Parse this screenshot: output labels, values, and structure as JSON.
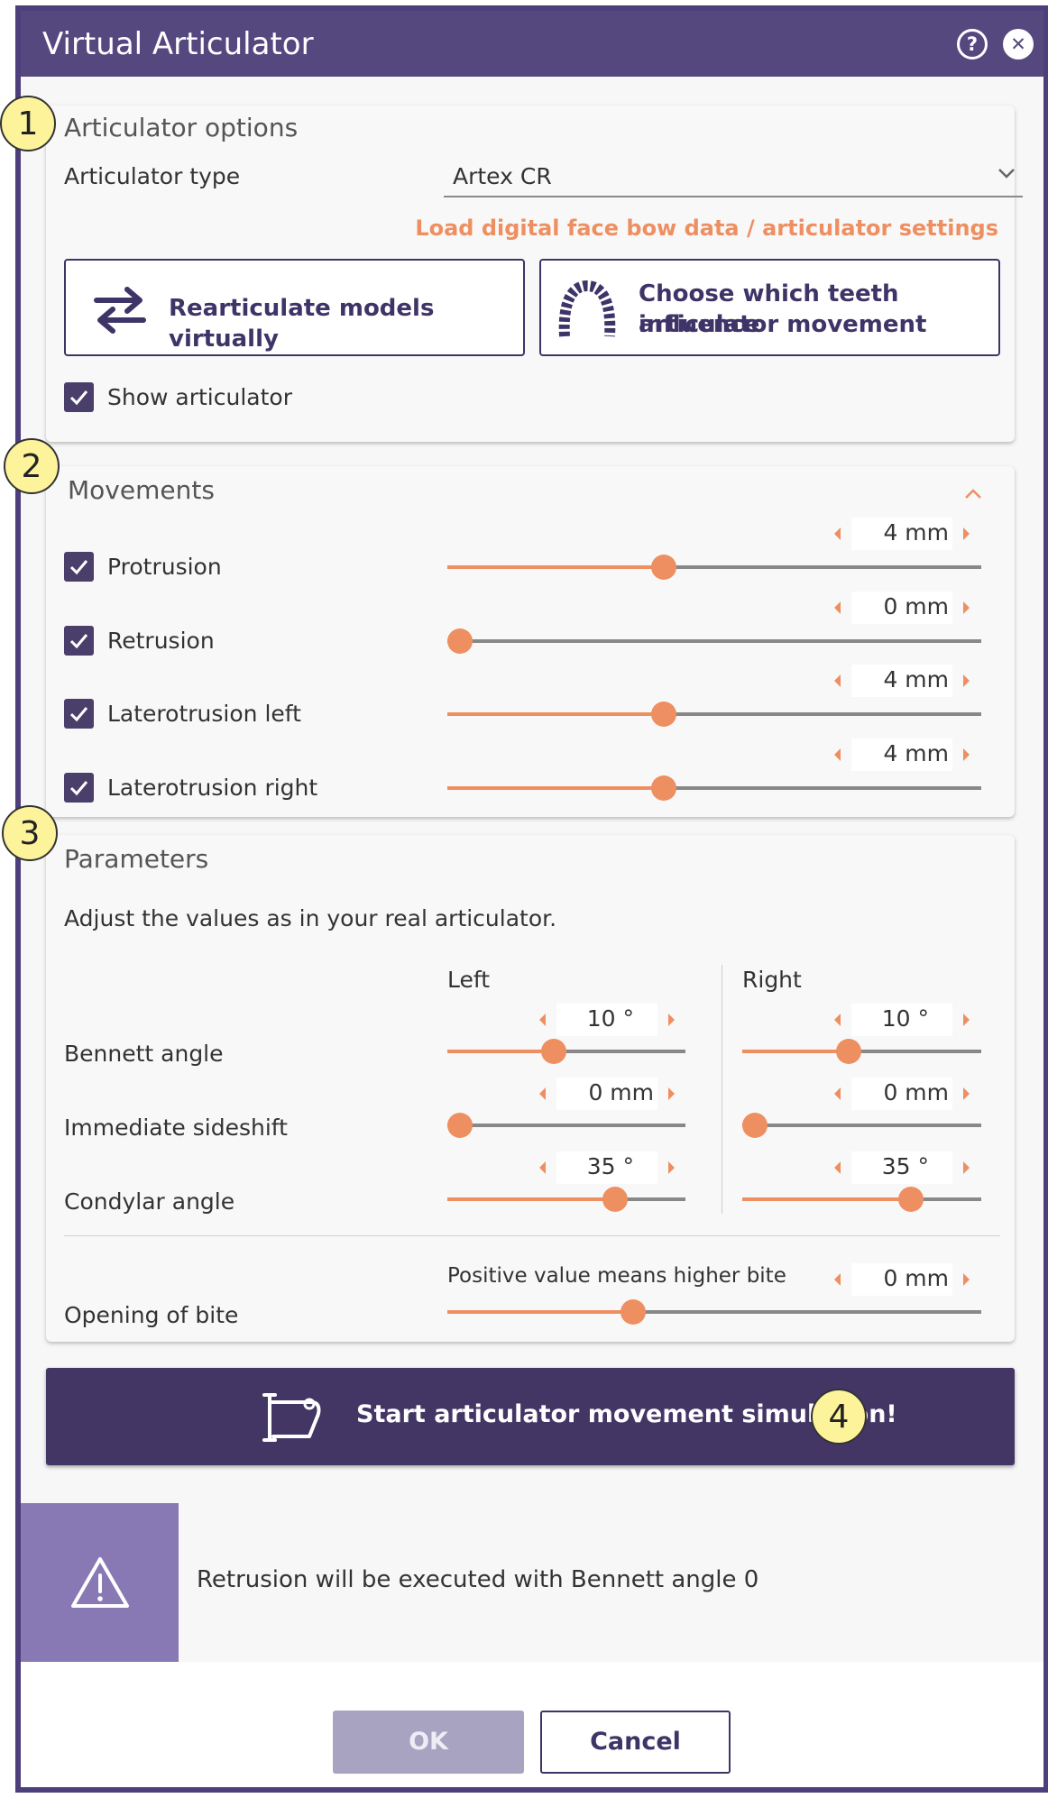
{
  "window": {
    "title": "Virtual Articulator"
  },
  "options": {
    "title": "Articulator options",
    "type_label": "Articulator type",
    "type_value": "Artex CR",
    "load_link": "Load digital face bow data / articulator settings",
    "rearticulate_label": "Rearticulate models virtually",
    "choose_teeth_label_1": "Choose which teeth influence",
    "choose_teeth_label_2": "articulator movement",
    "show_articulator_label": "Show articulator",
    "show_articulator_checked": true
  },
  "movements": {
    "title": "Movements",
    "items": [
      {
        "label": "Protrusion",
        "checked": true,
        "value": "4 mm",
        "fraction": 0.4
      },
      {
        "label": "Retrusion",
        "checked": true,
        "value": "0 mm",
        "fraction": 0.0
      },
      {
        "label": "Laterotrusion left",
        "checked": true,
        "value": "4 mm",
        "fraction": 0.4
      },
      {
        "label": "Laterotrusion right",
        "checked": true,
        "value": "4 mm",
        "fraction": 0.4
      }
    ]
  },
  "parameters": {
    "title": "Parameters",
    "description": "Adjust the values as in your real articulator.",
    "left_header": "Left",
    "right_header": "Right",
    "rows": [
      {
        "label": "Bennett angle",
        "left": {
          "value": "10 °",
          "fraction": 0.44
        },
        "right": {
          "value": "10 °",
          "fraction": 0.44
        }
      },
      {
        "label": "Immediate sideshift",
        "left": {
          "value": "0 mm",
          "fraction": 0.0
        },
        "right": {
          "value": "0 mm",
          "fraction": 0.0
        }
      },
      {
        "label": "Condylar angle",
        "left": {
          "value": "35 °",
          "fraction": 0.73
        },
        "right": {
          "value": "35 °",
          "fraction": 0.73
        }
      }
    ],
    "bite": {
      "label": "Opening of bite",
      "hint": "Positive value means higher bite",
      "value": "0 mm",
      "fraction": 0.34
    }
  },
  "markers": [
    "1",
    "2",
    "3",
    "4"
  ],
  "start_button": {
    "label": "Start articulator movement simulation!"
  },
  "warning": {
    "message": "Retrusion will be executed with Bennett angle 0"
  },
  "footer": {
    "ok_label": "OK",
    "cancel_label": "Cancel"
  },
  "colors": {
    "primary": "#55487f",
    "accent": "#ee8f61",
    "warning_side": "#8879b5"
  }
}
